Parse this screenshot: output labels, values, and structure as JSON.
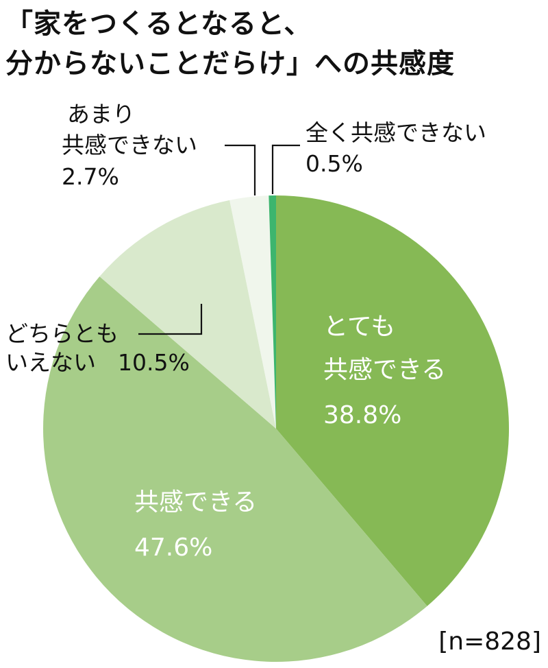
{
  "chart_data": {
    "type": "pie",
    "title": [
      "「家をつくるとなると、",
      "分からないことだらけ」への共感度"
    ],
    "n_label": "[n=828]",
    "start_angle_deg": 0,
    "direction": "clockwise",
    "legend": "none",
    "slices": [
      {
        "key": "very_agree",
        "lines": [
          "とても",
          "共感できる"
        ],
        "value": 38.8,
        "value_label": "38.8%",
        "color": "#86b955",
        "label_style": "inside"
      },
      {
        "key": "agree",
        "lines": [
          "共感できる"
        ],
        "value": 47.6,
        "value_label": "47.6%",
        "color": "#a7cd89",
        "label_style": "inside"
      },
      {
        "key": "neutral",
        "lines": [
          "どちらとも",
          "いえない"
        ],
        "value": 10.5,
        "value_label": "10.5%",
        "color": "#d9e9cc",
        "label_style": "outside"
      },
      {
        "key": "little",
        "lines": [
          "あまり",
          "共感できない"
        ],
        "value": 2.7,
        "value_label": "2.7%",
        "color": "#f0f6ec",
        "label_style": "outside"
      },
      {
        "key": "none",
        "lines": [
          "全く共感できない"
        ],
        "value": 0.5,
        "value_label": "0.5%",
        "color": "#3db56e",
        "label_style": "outside"
      }
    ]
  }
}
